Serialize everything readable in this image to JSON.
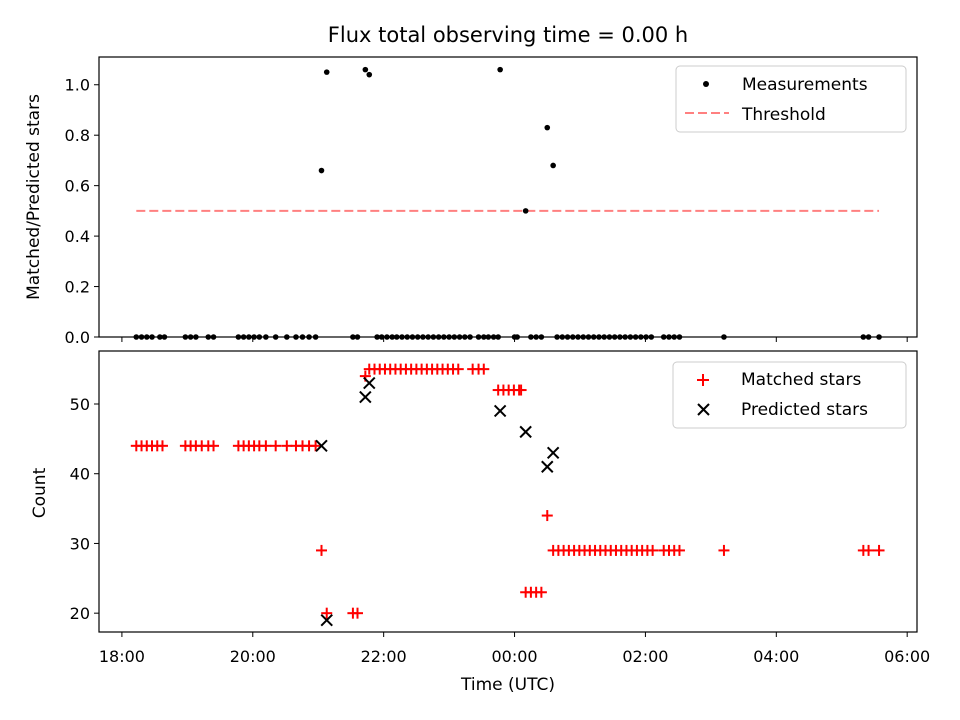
{
  "chart_data": [
    {
      "type": "scatter",
      "title": "Flux total observing time = 0.00 h",
      "ylabel": "Matched/Predicted stars",
      "ylim": [
        0,
        1.11
      ],
      "yticks": [
        0.0,
        0.2,
        0.4,
        0.6,
        0.8,
        1.0
      ],
      "ytick_labels": [
        "0.0",
        "0.2",
        "0.4",
        "0.6",
        "0.8",
        "1.0"
      ],
      "x_axis": "shared time axis, hours after 18:00 UTC",
      "legend": "top-right",
      "series": [
        {
          "name": "Measurements",
          "marker": "dot",
          "color": "#000000",
          "points": [
            [
              0.22,
              0
            ],
            [
              0.3,
              0
            ],
            [
              0.38,
              0
            ],
            [
              0.46,
              0
            ],
            [
              0.58,
              0
            ],
            [
              0.65,
              0
            ],
            [
              0.97,
              0
            ],
            [
              1.05,
              0
            ],
            [
              1.13,
              0
            ],
            [
              1.32,
              0
            ],
            [
              1.4,
              0
            ],
            [
              1.78,
              0
            ],
            [
              1.86,
              0
            ],
            [
              1.94,
              0
            ],
            [
              2.02,
              0
            ],
            [
              2.1,
              0
            ],
            [
              2.2,
              0
            ],
            [
              2.35,
              0
            ],
            [
              2.52,
              0
            ],
            [
              2.66,
              0
            ],
            [
              2.76,
              0
            ],
            [
              2.86,
              0
            ],
            [
              2.96,
              0
            ],
            [
              3.05,
              0.66
            ],
            [
              3.13,
              1.05
            ],
            [
              3.53,
              0
            ],
            [
              3.6,
              0
            ],
            [
              3.72,
              1.06
            ],
            [
              3.78,
              1.04
            ],
            [
              3.9,
              0
            ],
            [
              3.97,
              0
            ],
            [
              4.05,
              0
            ],
            [
              4.13,
              0
            ],
            [
              4.2,
              0
            ],
            [
              4.28,
              0
            ],
            [
              4.36,
              0
            ],
            [
              4.44,
              0
            ],
            [
              4.52,
              0
            ],
            [
              4.6,
              0
            ],
            [
              4.68,
              0
            ],
            [
              4.76,
              0
            ],
            [
              4.84,
              0
            ],
            [
              4.92,
              0
            ],
            [
              5.0,
              0
            ],
            [
              5.08,
              0
            ],
            [
              5.16,
              0
            ],
            [
              5.24,
              0
            ],
            [
              5.32,
              0
            ],
            [
              5.45,
              0
            ],
            [
              5.53,
              0
            ],
            [
              5.6,
              0
            ],
            [
              5.68,
              0
            ],
            [
              5.75,
              0
            ],
            [
              5.78,
              1.06
            ],
            [
              6.0,
              0
            ],
            [
              6.04,
              0
            ],
            [
              6.17,
              0.5
            ],
            [
              6.25,
              0
            ],
            [
              6.33,
              0
            ],
            [
              6.41,
              0
            ],
            [
              6.5,
              0.83
            ],
            [
              6.59,
              0.68
            ],
            [
              6.65,
              0
            ],
            [
              6.73,
              0
            ],
            [
              6.81,
              0
            ],
            [
              6.89,
              0
            ],
            [
              6.97,
              0
            ],
            [
              7.05,
              0
            ],
            [
              7.13,
              0
            ],
            [
              7.21,
              0
            ],
            [
              7.29,
              0
            ],
            [
              7.37,
              0
            ],
            [
              7.45,
              0
            ],
            [
              7.53,
              0
            ],
            [
              7.61,
              0
            ],
            [
              7.69,
              0
            ],
            [
              7.77,
              0
            ],
            [
              7.85,
              0
            ],
            [
              7.93,
              0
            ],
            [
              8.01,
              0
            ],
            [
              8.09,
              0
            ],
            [
              8.28,
              0
            ],
            [
              8.36,
              0
            ],
            [
              8.44,
              0
            ],
            [
              8.52,
              0
            ],
            [
              9.2,
              0
            ],
            [
              11.33,
              0
            ],
            [
              11.41,
              0
            ],
            [
              11.57,
              0
            ]
          ]
        },
        {
          "name": "Threshold",
          "marker": "dashed-line",
          "color": "#ff8080",
          "points": [
            [
              0.22,
              0.5
            ],
            [
              11.57,
              0.5
            ]
          ]
        }
      ]
    },
    {
      "type": "scatter",
      "xlabel": "Time (UTC)",
      "ylabel": "Count",
      "ylim": [
        17.3,
        57.6
      ],
      "yticks": [
        20,
        30,
        40,
        50
      ],
      "ytick_labels": [
        "20",
        "30",
        "40",
        "50"
      ],
      "xlim_hours_after_1800": [
        -0.35,
        12.15
      ],
      "xticks_hours_after_1800": [
        0,
        2,
        4,
        6,
        8,
        10,
        12
      ],
      "xtick_labels": [
        "18:00",
        "20:00",
        "22:00",
        "00:00",
        "02:00",
        "04:00",
        "06:00"
      ],
      "legend": "top-right",
      "series": [
        {
          "name": "Matched stars",
          "marker": "plus",
          "color": "#ff0000",
          "points": [
            [
              0.22,
              44
            ],
            [
              0.3,
              44
            ],
            [
              0.38,
              44
            ],
            [
              0.46,
              44
            ],
            [
              0.54,
              44
            ],
            [
              0.62,
              44
            ],
            [
              0.97,
              44
            ],
            [
              1.05,
              44
            ],
            [
              1.13,
              44
            ],
            [
              1.22,
              44
            ],
            [
              1.32,
              44
            ],
            [
              1.4,
              44
            ],
            [
              1.78,
              44
            ],
            [
              1.86,
              44
            ],
            [
              1.94,
              44
            ],
            [
              2.02,
              44
            ],
            [
              2.1,
              44
            ],
            [
              2.2,
              44
            ],
            [
              2.35,
              44
            ],
            [
              2.52,
              44
            ],
            [
              2.66,
              44
            ],
            [
              2.76,
              44
            ],
            [
              2.86,
              44
            ],
            [
              2.96,
              44
            ],
            [
              3.05,
              29
            ],
            [
              3.13,
              20
            ],
            [
              3.53,
              20
            ],
            [
              3.6,
              20
            ],
            [
              3.72,
              54
            ],
            [
              3.78,
              55
            ],
            [
              3.86,
              55
            ],
            [
              3.94,
              55
            ],
            [
              4.02,
              55
            ],
            [
              4.1,
              55
            ],
            [
              4.18,
              55
            ],
            [
              4.26,
              55
            ],
            [
              4.34,
              55
            ],
            [
              4.42,
              55
            ],
            [
              4.5,
              55
            ],
            [
              4.58,
              55
            ],
            [
              4.66,
              55
            ],
            [
              4.74,
              55
            ],
            [
              4.82,
              55
            ],
            [
              4.9,
              55
            ],
            [
              4.98,
              55
            ],
            [
              5.06,
              55
            ],
            [
              5.14,
              55
            ],
            [
              5.36,
              55
            ],
            [
              5.45,
              55
            ],
            [
              5.53,
              55
            ],
            [
              5.75,
              52
            ],
            [
              5.83,
              52
            ],
            [
              5.91,
              52
            ],
            [
              5.99,
              52
            ],
            [
              6.07,
              52
            ],
            [
              6.1,
              52
            ],
            [
              6.17,
              23
            ],
            [
              6.25,
              23
            ],
            [
              6.33,
              23
            ],
            [
              6.41,
              23
            ],
            [
              6.5,
              34
            ],
            [
              6.59,
              29
            ],
            [
              6.67,
              29
            ],
            [
              6.75,
              29
            ],
            [
              6.83,
              29
            ],
            [
              6.91,
              29
            ],
            [
              6.99,
              29
            ],
            [
              7.07,
              29
            ],
            [
              7.15,
              29
            ],
            [
              7.23,
              29
            ],
            [
              7.31,
              29
            ],
            [
              7.39,
              29
            ],
            [
              7.47,
              29
            ],
            [
              7.55,
              29
            ],
            [
              7.63,
              29
            ],
            [
              7.71,
              29
            ],
            [
              7.79,
              29
            ],
            [
              7.87,
              29
            ],
            [
              7.95,
              29
            ],
            [
              8.03,
              29
            ],
            [
              8.11,
              29
            ],
            [
              8.28,
              29
            ],
            [
              8.36,
              29
            ],
            [
              8.44,
              29
            ],
            [
              8.52,
              29
            ],
            [
              9.2,
              29
            ],
            [
              11.33,
              29
            ],
            [
              11.41,
              29
            ],
            [
              11.57,
              29
            ]
          ]
        },
        {
          "name": "Predicted stars",
          "marker": "x",
          "color": "#000000",
          "points": [
            [
              3.05,
              44
            ],
            [
              3.13,
              19
            ],
            [
              3.72,
              51
            ],
            [
              3.78,
              53
            ],
            [
              5.78,
              49
            ],
            [
              6.17,
              46
            ],
            [
              6.5,
              41
            ],
            [
              6.59,
              43
            ]
          ]
        }
      ]
    }
  ]
}
